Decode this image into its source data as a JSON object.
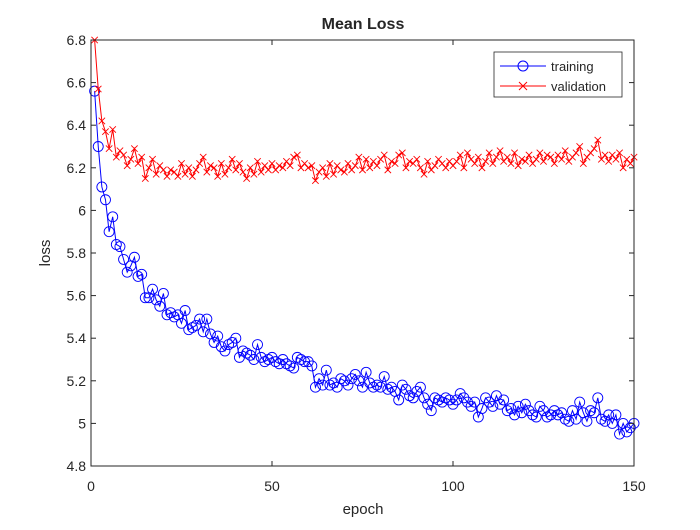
{
  "chart_data": {
    "type": "line",
    "title": "Mean Loss",
    "xlabel": "epoch",
    "ylabel": "loss",
    "xlim": [
      0,
      150
    ],
    "ylim": [
      4.8,
      6.8
    ],
    "xticks": [
      0,
      50,
      100,
      150
    ],
    "yticks": [
      4.8,
      5,
      5.2,
      5.4,
      5.6,
      5.8,
      6,
      6.2,
      6.4,
      6.6,
      6.8
    ],
    "grid": false,
    "legend_position": "top-right",
    "series": [
      {
        "name": "training",
        "color": "#0000ff",
        "marker": "circle",
        "x": [
          1,
          2,
          3,
          4,
          5,
          6,
          7,
          8,
          9,
          10,
          11,
          12,
          13,
          14,
          15,
          16,
          17,
          18,
          19,
          20,
          21,
          22,
          23,
          24,
          25,
          26,
          27,
          28,
          29,
          30,
          31,
          32,
          33,
          34,
          35,
          36,
          37,
          38,
          39,
          40,
          41,
          42,
          43,
          44,
          45,
          46,
          47,
          48,
          49,
          50,
          51,
          52,
          53,
          54,
          55,
          56,
          57,
          58,
          59,
          60,
          61,
          62,
          63,
          64,
          65,
          66,
          67,
          68,
          69,
          70,
          71,
          72,
          73,
          74,
          75,
          76,
          77,
          78,
          79,
          80,
          81,
          82,
          83,
          84,
          85,
          86,
          87,
          88,
          89,
          90,
          91,
          92,
          93,
          94,
          95,
          96,
          97,
          98,
          99,
          100,
          101,
          102,
          103,
          104,
          105,
          106,
          107,
          108,
          109,
          110,
          111,
          112,
          113,
          114,
          115,
          116,
          117,
          118,
          119,
          120,
          121,
          122,
          123,
          124,
          125,
          126,
          127,
          128,
          129,
          130,
          131,
          132,
          133,
          134,
          135,
          136,
          137,
          138,
          139,
          140,
          141,
          142,
          143,
          144,
          145,
          146,
          147,
          148,
          149,
          150
        ],
        "values": [
          6.56,
          6.3,
          6.11,
          6.05,
          5.9,
          5.97,
          5.84,
          5.83,
          5.77,
          5.71,
          5.74,
          5.78,
          5.69,
          5.7,
          5.59,
          5.59,
          5.63,
          5.58,
          5.55,
          5.61,
          5.51,
          5.52,
          5.5,
          5.51,
          5.47,
          5.53,
          5.44,
          5.45,
          5.46,
          5.49,
          5.43,
          5.49,
          5.42,
          5.38,
          5.41,
          5.36,
          5.34,
          5.37,
          5.38,
          5.4,
          5.31,
          5.34,
          5.33,
          5.32,
          5.3,
          5.37,
          5.31,
          5.29,
          5.3,
          5.31,
          5.29,
          5.28,
          5.3,
          5.28,
          5.27,
          5.26,
          5.31,
          5.3,
          5.29,
          5.29,
          5.27,
          5.17,
          5.21,
          5.18,
          5.25,
          5.18,
          5.19,
          5.17,
          5.21,
          5.2,
          5.18,
          5.21,
          5.23,
          5.2,
          5.17,
          5.24,
          5.19,
          5.17,
          5.18,
          5.17,
          5.22,
          5.16,
          5.17,
          5.15,
          5.11,
          5.18,
          5.16,
          5.13,
          5.12,
          5.15,
          5.17,
          5.12,
          5.09,
          5.06,
          5.12,
          5.11,
          5.1,
          5.12,
          5.11,
          5.09,
          5.11,
          5.14,
          5.12,
          5.1,
          5.08,
          5.1,
          5.03,
          5.07,
          5.12,
          5.1,
          5.08,
          5.13,
          5.09,
          5.11,
          5.06,
          5.07,
          5.04,
          5.08,
          5.05,
          5.09,
          5.06,
          5.04,
          5.03,
          5.08,
          5.06,
          5.03,
          5.04,
          5.06,
          5.04,
          5.05,
          5.02,
          5.01,
          5.06,
          5.02,
          5.1,
          5.05,
          5.01,
          5.06,
          5.05,
          5.12,
          5.02,
          5.01,
          5.04,
          5.0,
          5.04,
          4.95,
          5.0,
          4.96,
          4.98,
          5.0
        ]
      },
      {
        "name": "validation",
        "color": "#ff0000",
        "marker": "x",
        "x": [
          1,
          2,
          3,
          4,
          5,
          6,
          7,
          8,
          9,
          10,
          11,
          12,
          13,
          14,
          15,
          16,
          17,
          18,
          19,
          20,
          21,
          22,
          23,
          24,
          25,
          26,
          27,
          28,
          29,
          30,
          31,
          32,
          33,
          34,
          35,
          36,
          37,
          38,
          39,
          40,
          41,
          42,
          43,
          44,
          45,
          46,
          47,
          48,
          49,
          50,
          51,
          52,
          53,
          54,
          55,
          56,
          57,
          58,
          59,
          60,
          61,
          62,
          63,
          64,
          65,
          66,
          67,
          68,
          69,
          70,
          71,
          72,
          73,
          74,
          75,
          76,
          77,
          78,
          79,
          80,
          81,
          82,
          83,
          84,
          85,
          86,
          87,
          88,
          89,
          90,
          91,
          92,
          93,
          94,
          95,
          96,
          97,
          98,
          99,
          100,
          101,
          102,
          103,
          104,
          105,
          106,
          107,
          108,
          109,
          110,
          111,
          112,
          113,
          114,
          115,
          116,
          117,
          118,
          119,
          120,
          121,
          122,
          123,
          124,
          125,
          126,
          127,
          128,
          129,
          130,
          131,
          132,
          133,
          134,
          135,
          136,
          137,
          138,
          139,
          140,
          141,
          142,
          143,
          144,
          145,
          146,
          147,
          148,
          149,
          150
        ],
        "values": [
          6.8,
          6.57,
          6.42,
          6.37,
          6.29,
          6.38,
          6.25,
          6.28,
          6.26,
          6.21,
          6.24,
          6.29,
          6.22,
          6.25,
          6.15,
          6.2,
          6.24,
          6.17,
          6.21,
          6.19,
          6.16,
          6.19,
          6.18,
          6.16,
          6.22,
          6.17,
          6.2,
          6.16,
          6.19,
          6.22,
          6.25,
          6.18,
          6.21,
          6.2,
          6.16,
          6.22,
          6.17,
          6.2,
          6.24,
          6.19,
          6.22,
          6.18,
          6.15,
          6.2,
          6.17,
          6.23,
          6.18,
          6.21,
          6.19,
          6.22,
          6.19,
          6.21,
          6.2,
          6.23,
          6.21,
          6.25,
          6.26,
          6.2,
          6.22,
          6.2,
          6.21,
          6.14,
          6.18,
          6.2,
          6.16,
          6.22,
          6.17,
          6.21,
          6.19,
          6.18,
          6.22,
          6.19,
          6.21,
          6.25,
          6.19,
          6.24,
          6.2,
          6.23,
          6.21,
          6.24,
          6.26,
          6.19,
          6.23,
          6.22,
          6.26,
          6.27,
          6.2,
          6.23,
          6.22,
          6.24,
          6.2,
          6.17,
          6.23,
          6.19,
          6.21,
          6.24,
          6.22,
          6.2,
          6.23,
          6.21,
          6.23,
          6.26,
          6.2,
          6.27,
          6.24,
          6.22,
          6.25,
          6.2,
          6.23,
          6.27,
          6.22,
          6.25,
          6.28,
          6.23,
          6.25,
          6.22,
          6.27,
          6.21,
          6.24,
          6.23,
          6.26,
          6.22,
          6.24,
          6.27,
          6.23,
          6.26,
          6.25,
          6.22,
          6.26,
          6.24,
          6.28,
          6.23,
          6.25,
          6.27,
          6.3,
          6.22,
          6.25,
          6.27,
          6.29,
          6.33,
          6.24,
          6.26,
          6.23,
          6.26,
          6.24,
          6.27,
          6.2,
          6.24,
          6.22,
          6.25
        ]
      }
    ]
  }
}
